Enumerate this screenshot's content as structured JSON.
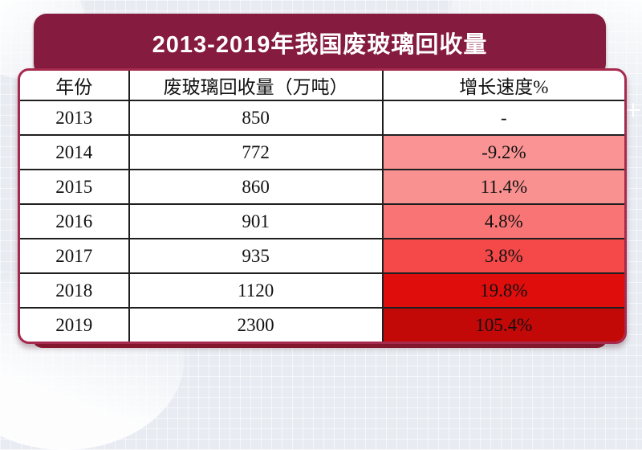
{
  "title": "2013-2019年我国废玻璃回收量",
  "colors": {
    "banner_bg": "#851B3F",
    "panel_border": "#A62A4D",
    "pedestal_top": "#6B0F26",
    "pedestal_bottom": "#A3203A",
    "background": "#E8ECF2",
    "growth_scale": [
      "#FA9494",
      "#FA9191",
      "#F97575",
      "#F54848",
      "#E00D0D",
      "#C30808"
    ]
  },
  "table": {
    "columns": [
      "年份",
      "废玻璃回收量（万吨）",
      "增长速度%"
    ],
    "rows": [
      {
        "year": "2013",
        "volume": "850",
        "growth": "-",
        "growth_bg": "#FFFFFF"
      },
      {
        "year": "2014",
        "volume": "772",
        "growth": "-9.2%",
        "growth_bg": "#FA9494"
      },
      {
        "year": "2015",
        "volume": "860",
        "growth": "11.4%",
        "growth_bg": "#FA9191"
      },
      {
        "year": "2016",
        "volume": "901",
        "growth": "4.8%",
        "growth_bg": "#F97575"
      },
      {
        "year": "2017",
        "volume": "935",
        "growth": "3.8%",
        "growth_bg": "#F54848"
      },
      {
        "year": "2018",
        "volume": "1120",
        "growth": "19.8%",
        "growth_bg": "#E00D0D"
      },
      {
        "year": "2019",
        "volume": "2300",
        "growth": "105.4%",
        "growth_bg": "#C30808"
      }
    ]
  },
  "chart_data": {
    "type": "table",
    "title": "2013-2019年我国废玻璃回收量",
    "columns": [
      "年份",
      "废玻璃回收量（万吨）",
      "增长速度%"
    ],
    "years": [
      2013,
      2014,
      2015,
      2016,
      2017,
      2018,
      2019
    ],
    "volumes_wan_tons": [
      850,
      772,
      860,
      901,
      935,
      1120,
      2300
    ],
    "growth_rate_pct": [
      null,
      -9.2,
      11.4,
      4.8,
      3.8,
      19.8,
      105.4
    ]
  }
}
